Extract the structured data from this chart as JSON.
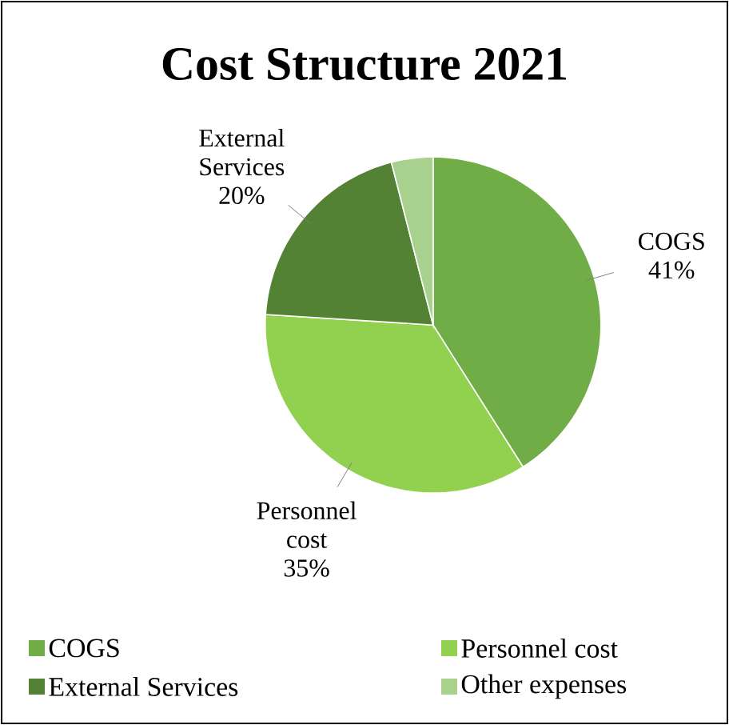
{
  "chart_data": {
    "type": "pie",
    "title": "Cost Structure 2021",
    "categories": [
      "COGS",
      "Personnel cost",
      "External Services",
      "Other expenses"
    ],
    "values": [
      41,
      35,
      20,
      4
    ],
    "value_labels": [
      "41%",
      "35%",
      "20%",
      null
    ],
    "colors": [
      "#70ad47",
      "#92d050",
      "#548235",
      "#a9d18e"
    ],
    "legend": "bottom"
  }
}
